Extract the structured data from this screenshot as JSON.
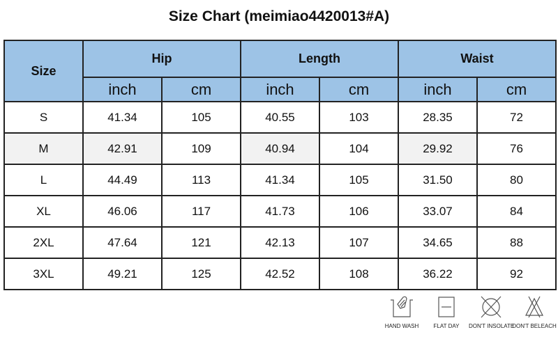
{
  "title": "Size Chart  (meimiao4420013#A)",
  "table": {
    "size_header": "Size",
    "groups": [
      "Hip",
      "Length",
      "Waist"
    ],
    "units": [
      "inch",
      "cm",
      "inch",
      "cm",
      "inch",
      "cm"
    ],
    "rows": [
      {
        "size": "S",
        "values": [
          "41.34",
          "105",
          "40.55",
          "103",
          "28.35",
          "72"
        ]
      },
      {
        "size": "M",
        "values": [
          "42.91",
          "109",
          "40.94",
          "104",
          "29.92",
          "76"
        ]
      },
      {
        "size": "L",
        "values": [
          "44.49",
          "113",
          "41.34",
          "105",
          "31.50",
          "80"
        ]
      },
      {
        "size": "XL",
        "values": [
          "46.06",
          "117",
          "41.73",
          "106",
          "33.07",
          "84"
        ]
      },
      {
        "size": "2XL",
        "values": [
          "47.64",
          "121",
          "42.13",
          "107",
          "34.65",
          "88"
        ]
      },
      {
        "size": "3XL",
        "values": [
          "49.21",
          "125",
          "42.52",
          "108",
          "36.22",
          "92"
        ]
      }
    ]
  },
  "care_icons": [
    {
      "icon": "hand-wash-icon",
      "label": "HAND WASH"
    },
    {
      "icon": "flat-dry-icon",
      "label": "FLAT DAY"
    },
    {
      "icon": "dont-insolate-icon",
      "label": "DON'T INSOLATE"
    },
    {
      "icon": "dont-bleach-icon",
      "label": "DON'T BELEACH"
    }
  ],
  "colors": {
    "header": "#9dc3e6",
    "highlight": "#f2f2f2"
  }
}
